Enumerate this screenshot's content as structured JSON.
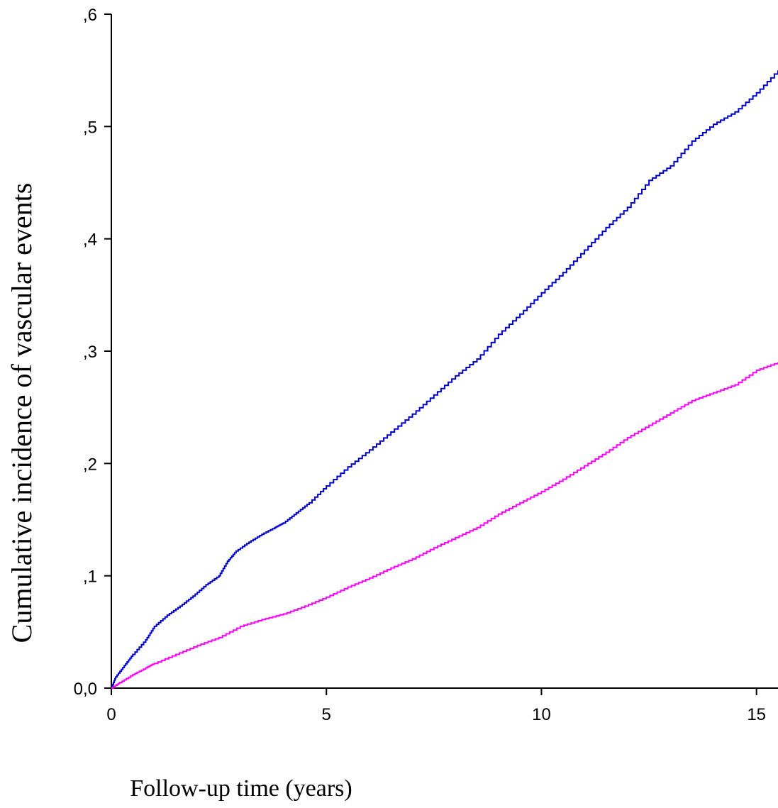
{
  "chart_data": {
    "type": "line",
    "title": "",
    "xlabel": "Follow-up time (years)",
    "ylabel": "Cumulative incidence of vascular events",
    "xlim": [
      0,
      15.5
    ],
    "ylim": [
      0,
      0.6
    ],
    "x_ticks": [
      {
        "value": 0,
        "label": "0"
      },
      {
        "value": 5,
        "label": "5"
      },
      {
        "value": 10,
        "label": "10"
      },
      {
        "value": 15,
        "label": "15"
      }
    ],
    "y_ticks": [
      {
        "value": 0.0,
        "label": "0,0"
      },
      {
        "value": 0.1,
        "label": ",1"
      },
      {
        "value": 0.2,
        "label": ",2"
      },
      {
        "value": 0.3,
        "label": ",3"
      },
      {
        "value": 0.4,
        "label": ",4"
      },
      {
        "value": 0.5,
        "label": ",5"
      },
      {
        "value": 0.6,
        "label": ",6"
      }
    ],
    "grid": false,
    "series": [
      {
        "color": "#0000cc",
        "x": [
          0,
          0.1,
          0.3,
          0.5,
          0.8,
          1.0,
          1.3,
          1.6,
          1.9,
          2.2,
          2.5,
          2.7,
          2.9,
          3.2,
          3.5,
          3.8,
          4.0,
          4.3,
          4.6,
          5.0,
          5.5,
          6.0,
          6.5,
          7.0,
          7.5,
          8.0,
          8.5,
          9.0,
          9.5,
          10.0,
          10.5,
          11.0,
          11.5,
          12.0,
          12.5,
          13.0,
          13.5,
          14.0,
          14.5,
          15.0,
          15.5
        ],
        "y": [
          0.0,
          0.01,
          0.02,
          0.03,
          0.043,
          0.055,
          0.065,
          0.073,
          0.082,
          0.092,
          0.1,
          0.113,
          0.122,
          0.13,
          0.137,
          0.143,
          0.147,
          0.156,
          0.165,
          0.18,
          0.197,
          0.212,
          0.228,
          0.244,
          0.261,
          0.278,
          0.293,
          0.315,
          0.333,
          0.352,
          0.37,
          0.39,
          0.41,
          0.428,
          0.452,
          0.465,
          0.487,
          0.502,
          0.513,
          0.53,
          0.55
        ]
      },
      {
        "color": "#ff00ff",
        "x": [
          0,
          0.2,
          0.5,
          0.8,
          1.0,
          1.5,
          2.0,
          2.5,
          3.0,
          3.5,
          4.0,
          4.5,
          5.0,
          5.5,
          6.0,
          6.5,
          7.0,
          7.5,
          8.0,
          8.5,
          9.0,
          9.5,
          10.0,
          10.5,
          11.0,
          11.5,
          12.0,
          12.5,
          13.0,
          13.5,
          14.0,
          14.5,
          15.0,
          15.5
        ],
        "y": [
          0.0,
          0.005,
          0.012,
          0.018,
          0.022,
          0.03,
          0.038,
          0.045,
          0.055,
          0.061,
          0.066,
          0.073,
          0.081,
          0.09,
          0.098,
          0.107,
          0.115,
          0.125,
          0.134,
          0.143,
          0.155,
          0.165,
          0.175,
          0.186,
          0.198,
          0.21,
          0.223,
          0.234,
          0.245,
          0.256,
          0.263,
          0.27,
          0.283,
          0.29
        ]
      }
    ]
  }
}
